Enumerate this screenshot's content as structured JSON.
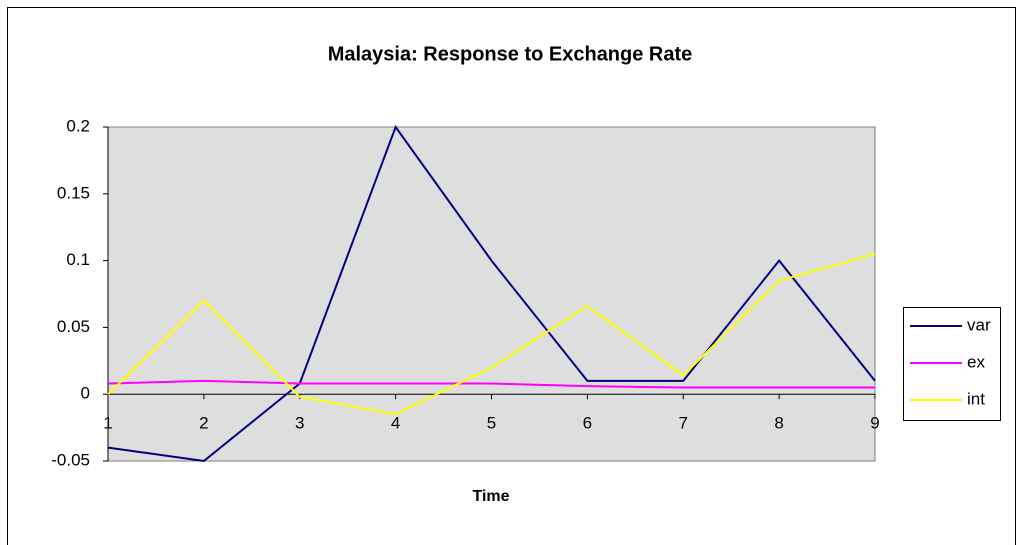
{
  "chart_data": {
    "type": "line",
    "title": "Malaysia: Response to Exchange Rate",
    "x_label": "Time",
    "x": [
      1,
      2,
      3,
      4,
      5,
      6,
      7,
      8,
      9
    ],
    "xlim": [
      1,
      9
    ],
    "xticks": [
      1,
      2,
      3,
      4,
      5,
      6,
      7,
      8,
      9
    ],
    "ylim": [
      -0.05,
      0.2
    ],
    "yticks": [
      0.2,
      0.15,
      0.1,
      0.05,
      0,
      -0.05
    ],
    "grid": false,
    "legend": "right",
    "series": [
      {
        "name": "var",
        "color": "#000080",
        "values": [
          -0.04,
          -0.05,
          0.008,
          0.2,
          0.1,
          0.01,
          0.01,
          0.1,
          0.01
        ]
      },
      {
        "name": "ex",
        "color": "#ff00ff",
        "values": [
          0.008,
          0.01,
          0.008,
          0.008,
          0.008,
          0.006,
          0.005,
          0.005,
          0.005
        ]
      },
      {
        "name": "int",
        "color": "#ffff00",
        "values": [
          0,
          0.07,
          -0.002,
          -0.015,
          0.02,
          0.066,
          0.014,
          0.085,
          0.105
        ]
      }
    ]
  }
}
